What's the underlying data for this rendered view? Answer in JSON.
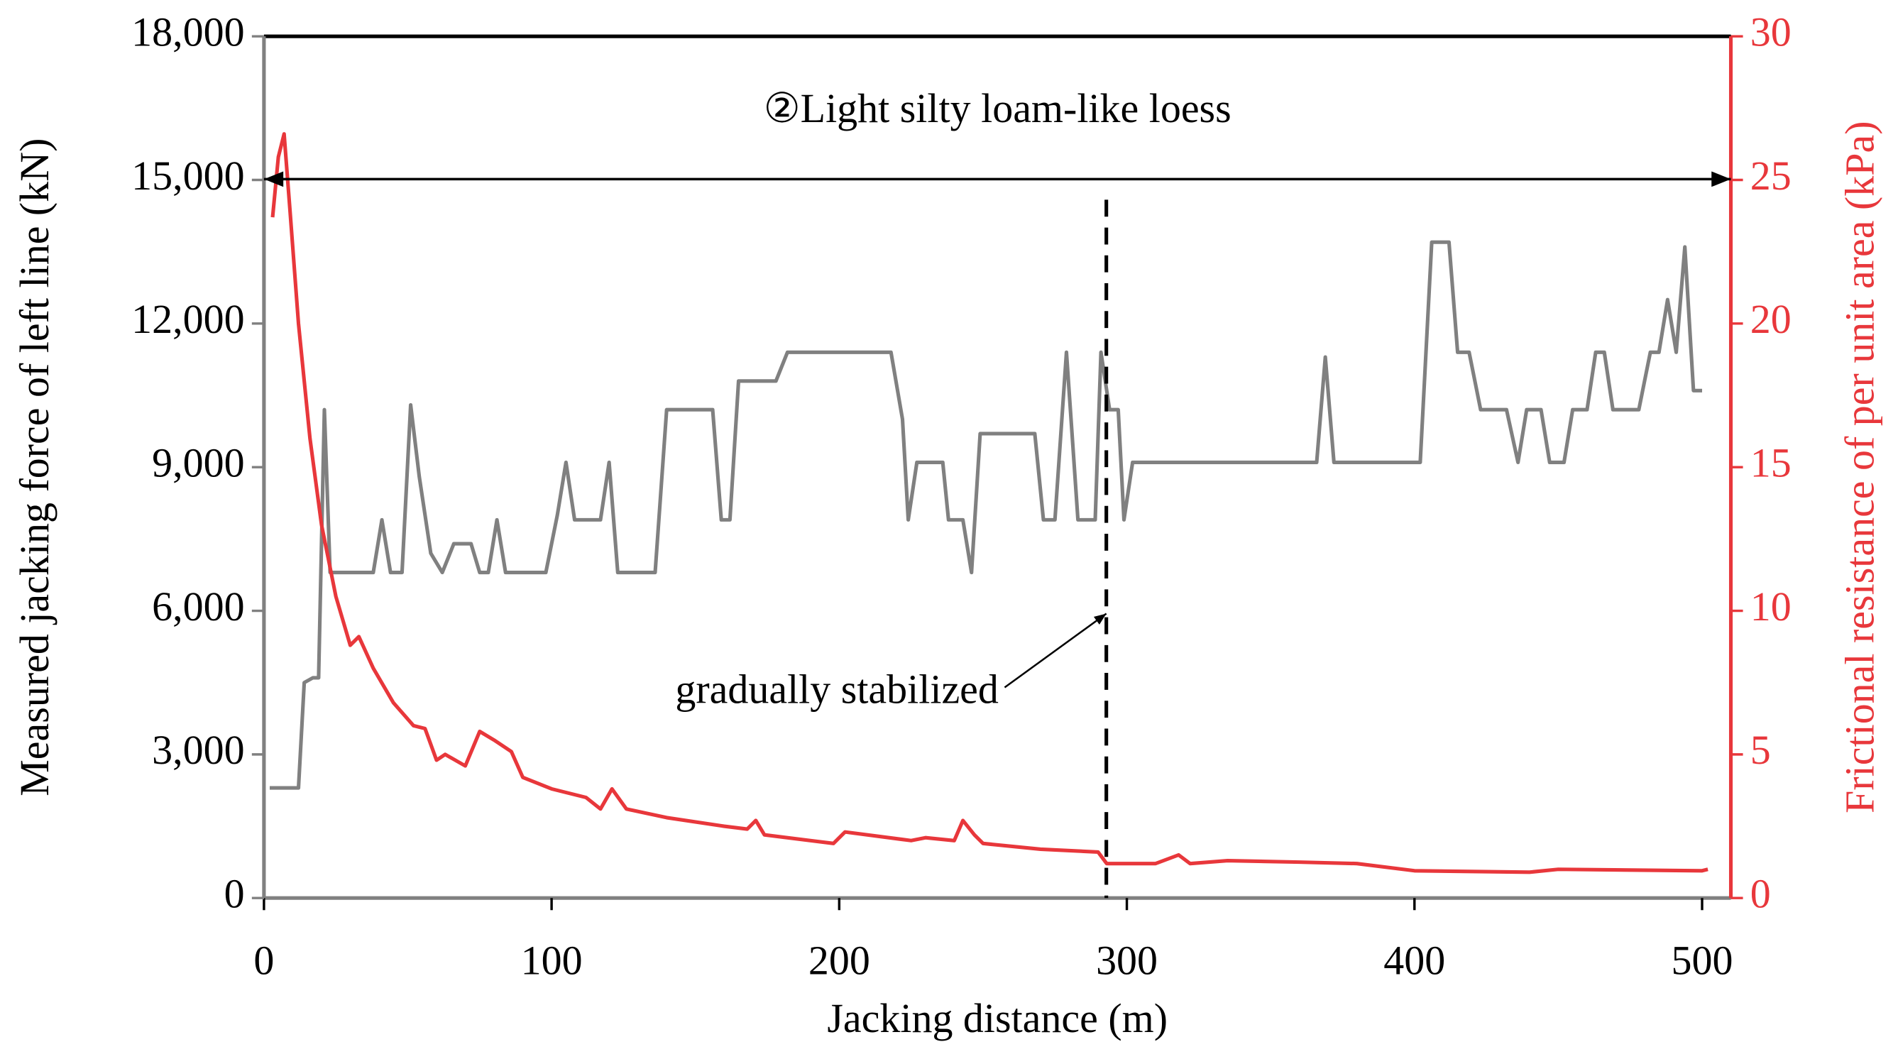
{
  "chart_data": {
    "type": "line",
    "x_label": "Jacking distance (m)",
    "y_label": "Measured jacking force of left line (kN)",
    "y2_label": "Frictional resistance of per unit area (kPa)",
    "annotations": [
      "②Light silty loam-like loess",
      "gradually stabilized"
    ],
    "xlim": [
      0,
      510
    ],
    "xticks": [
      0,
      100,
      200,
      300,
      400,
      500
    ],
    "ylim": [
      0,
      18000
    ],
    "yticks": [
      0,
      {
        "value": 3000,
        "label": "3,000"
      },
      {
        "value": 6000,
        "label": "6,000"
      },
      {
        "value": 9000,
        "label": "9,000"
      },
      {
        "value": 12000,
        "label": "12,000"
      },
      {
        "value": 15000,
        "label": "15,000"
      },
      {
        "value": 18000,
        "label": "18,000"
      }
    ],
    "y2lim": [
      0,
      30
    ],
    "y2ticks": [
      0,
      5,
      10,
      15,
      20,
      25,
      30
    ],
    "grid": false,
    "series": [
      {
        "name": "Measured jacking force",
        "color": "#808080",
        "x": [
          2,
          12,
          14,
          17,
          19,
          21,
          23,
          38,
          41,
          44,
          48,
          51,
          54,
          58,
          62,
          66,
          72,
          75,
          78,
          81,
          84,
          98,
          102,
          105,
          108,
          117,
          120,
          123,
          136,
          140,
          156,
          159,
          162,
          165,
          178,
          182,
          218,
          222,
          224,
          227,
          236,
          238,
          243,
          246,
          249,
          268,
          271,
          275,
          279,
          283,
          289,
          291,
          294,
          297,
          299,
          302,
          366,
          369,
          372,
          402,
          406,
          412,
          415,
          419,
          423,
          432,
          436,
          439,
          444,
          447,
          452,
          455,
          460,
          463,
          466,
          469,
          478,
          482,
          485,
          488,
          491,
          494,
          497,
          500
        ],
        "values": [
          2300,
          2300,
          4500,
          4600,
          4600,
          10200,
          6800,
          6800,
          7900,
          6800,
          6800,
          10300,
          8800,
          7200,
          6800,
          7400,
          7400,
          6800,
          6800,
          7900,
          6800,
          6800,
          8000,
          9100,
          7900,
          7900,
          9100,
          6800,
          6800,
          10200,
          10200,
          7900,
          7900,
          10800,
          10800,
          11400,
          11400,
          10000,
          7900,
          9100,
          9100,
          7900,
          7900,
          6800,
          9700,
          9700,
          7900,
          7900,
          11400,
          7900,
          7900,
          11400,
          10200,
          10200,
          7900,
          9100,
          9100,
          11300,
          9100,
          9100,
          13700,
          13700,
          11400,
          11400,
          10200,
          10200,
          9100,
          10200,
          10200,
          9100,
          9100,
          10200,
          10200,
          11400,
          11400,
          10200,
          10200,
          11400,
          11400,
          12500,
          11400,
          13600,
          10600,
          10600
        ]
      },
      {
        "name": "Frictional resistance",
        "color": "#e8373b",
        "axis": "y2",
        "x": [
          3,
          5,
          7,
          9,
          12,
          16,
          20,
          25,
          30,
          33,
          38,
          45,
          52,
          56,
          60,
          63,
          70,
          75,
          80,
          86,
          90,
          100,
          112,
          117,
          121,
          126,
          140,
          160,
          168,
          171,
          174,
          198,
          202,
          225,
          230,
          240,
          243,
          247,
          250,
          270,
          290,
          293,
          310,
          318,
          322,
          335,
          360,
          380,
          400,
          440,
          450,
          500,
          502
        ],
        "values": [
          23.7,
          25.8,
          26.6,
          24,
          20,
          16,
          13,
          10.5,
          8.8,
          9.1,
          8,
          6.8,
          6,
          5.9,
          4.8,
          5,
          4.6,
          5.8,
          5.5,
          5.1,
          4.2,
          3.8,
          3.5,
          3.1,
          3.8,
          3.1,
          2.8,
          2.5,
          2.4,
          2.7,
          2.2,
          1.9,
          2.3,
          2,
          2.1,
          2,
          2.7,
          2.2,
          1.9,
          1.7,
          1.6,
          1.2,
          1.2,
          1.5,
          1.2,
          1.3,
          1.25,
          1.2,
          0.95,
          0.9,
          1,
          0.95,
          1
        ]
      }
    ]
  }
}
